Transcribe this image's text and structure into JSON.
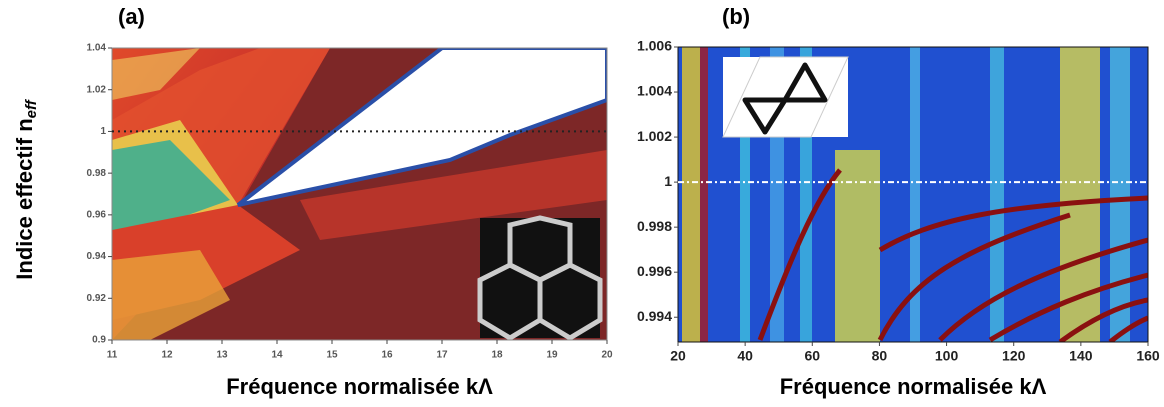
{
  "chart_data": [
    {
      "type": "heatmap",
      "panel": "(a)",
      "ylabel": "Indice effectif n",
      "ylabel_subscript": "eff",
      "xlabel": "Fréquence normalisée kΛ",
      "xlim": [
        11,
        20
      ],
      "ylim": [
        0.9,
        1.04
      ],
      "xticks": [
        11,
        12,
        13,
        14,
        15,
        16,
        17,
        18,
        19,
        20
      ],
      "yticks": [
        0.9,
        0.92,
        0.94,
        0.96,
        0.98,
        1,
        1.02,
        1.04
      ],
      "hline": 1
    },
    {
      "type": "heatmap",
      "panel": "(b)",
      "xlabel": "Fréquence normalisée kΛ",
      "xlim": [
        20,
        160
      ],
      "ylim": [
        0.9929,
        1.006
      ],
      "xticks": [
        20,
        40,
        60,
        80,
        100,
        120,
        140,
        160
      ],
      "yticks": [
        0.994,
        0.996,
        0.998,
        1,
        1.002,
        1.004,
        1.006
      ],
      "hline": 1
    }
  ]
}
